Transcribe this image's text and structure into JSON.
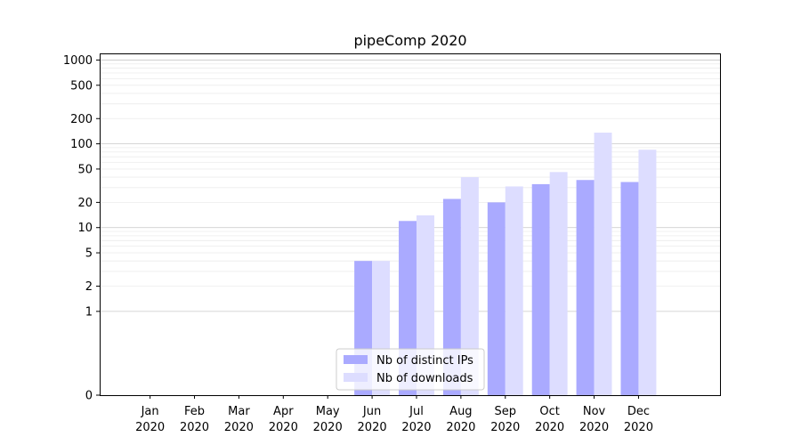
{
  "chart_data": {
    "type": "bar",
    "title": "pipeComp 2020",
    "xlabel": "",
    "ylabel": "",
    "yscale": "symlog",
    "ylim": [
      0,
      1200
    ],
    "categories": [
      "Jan\n2020",
      "Feb\n2020",
      "Mar\n2020",
      "Apr\n2020",
      "May\n2020",
      "Jun\n2020",
      "Jul\n2020",
      "Aug\n2020",
      "Sep\n2020",
      "Oct\n2020",
      "Nov\n2020",
      "Dec\n2020"
    ],
    "yticks": [
      0,
      1,
      2,
      5,
      10,
      20,
      50,
      100,
      200,
      500,
      1000
    ],
    "series": [
      {
        "name": "Nb of distinct IPs",
        "color": "#aaaaff",
        "values": [
          0,
          0,
          0,
          0,
          0,
          4,
          12,
          22,
          20,
          33,
          37,
          35
        ]
      },
      {
        "name": "Nb of downloads",
        "color": "#ddddff",
        "values": [
          0,
          0,
          0,
          0,
          0,
          4,
          14,
          40,
          31,
          46,
          136,
          85
        ]
      }
    ],
    "legend_position": "lower-center",
    "grid": true
  }
}
